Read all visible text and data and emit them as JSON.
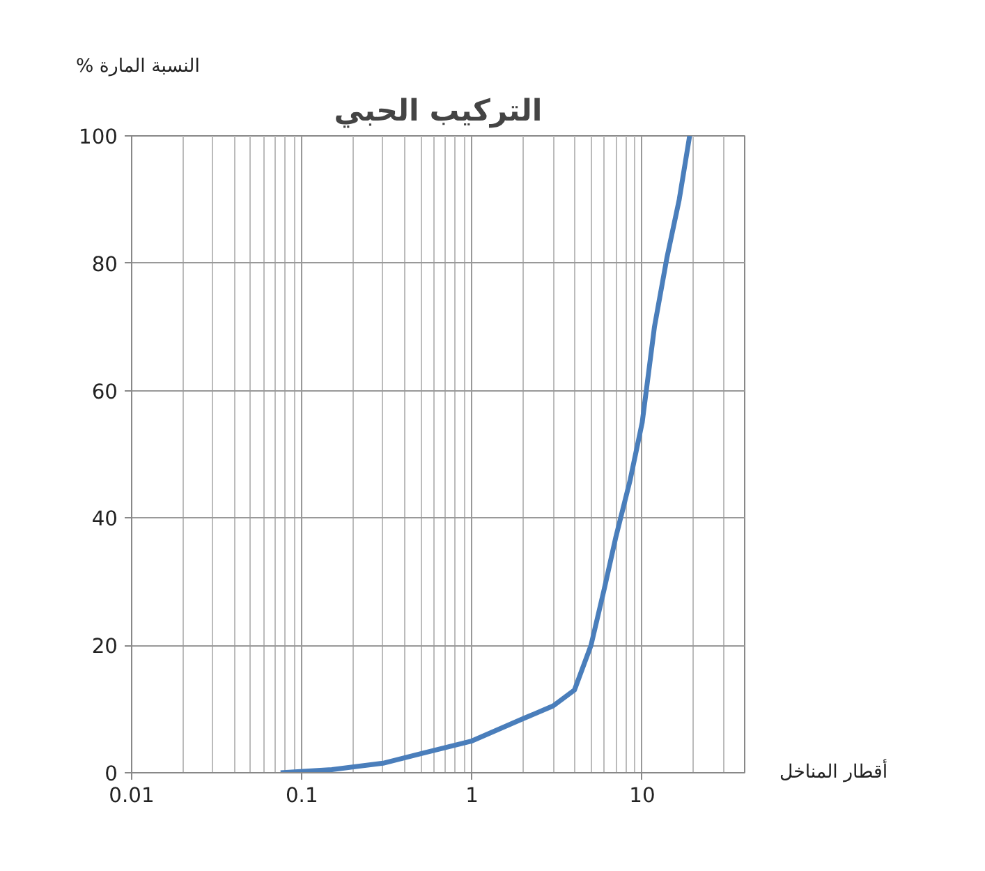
{
  "chart_data": {
    "type": "line",
    "title": "التركيب الحبي",
    "xlabel": "أقطار المناخل",
    "ylabel": "% النسبة المارة",
    "log": "x",
    "xlim": [
      0.01,
      40
    ],
    "xticks": [
      0.01,
      0.1,
      1,
      10
    ],
    "ylim": [
      0,
      100
    ],
    "yticks": [
      0,
      20,
      40,
      60,
      80,
      100
    ],
    "grid": true,
    "marker": "none",
    "x": [
      0.075,
      0.15,
      0.3,
      0.5,
      1,
      2,
      3,
      4,
      5,
      6,
      7,
      8.5,
      10,
      11.8,
      14,
      16.5,
      19
    ],
    "series": [
      {
        "color": "#4a7ebb",
        "values": [
          0,
          0.5,
          1.5,
          3,
          5,
          8.5,
          10.5,
          13,
          20,
          29,
          37,
          46,
          55,
          70,
          81,
          90,
          100
        ]
      }
    ]
  }
}
